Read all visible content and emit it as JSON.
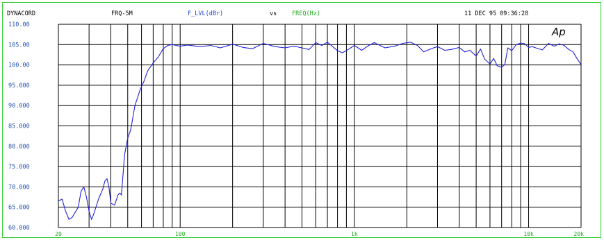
{
  "header": {
    "brand": "DYNACORD",
    "device": "FRQ-5M",
    "y_quantity": "F_LVL(dBr)",
    "vs": "vs",
    "x_quantity": "FREQ(Hz)",
    "timestamp": "11 DEC 95 09:36:28"
  },
  "logo": "Ap",
  "colors": {
    "frame": "#32cd32",
    "trace": "#1f1fd8",
    "ytick_text": "#2050b0",
    "xtick_text": "#1faa1f",
    "y_quantity": "#1f3fd0",
    "x_quantity": "#1faa1f",
    "grid": "#000000"
  },
  "chart_data": {
    "type": "line",
    "title": "",
    "xlabel": "",
    "ylabel": "",
    "x_scale": "log",
    "xlim": [
      20,
      20000
    ],
    "ylim": [
      60,
      110
    ],
    "grid": true,
    "x_tick_labels": [
      {
        "value": 20,
        "label": "20"
      },
      {
        "value": 100,
        "label": "100"
      },
      {
        "value": 1000,
        "label": "1k"
      },
      {
        "value": 10000,
        "label": "10k"
      },
      {
        "value": 20000,
        "label": "20k"
      }
    ],
    "y_tick_labels": [
      {
        "value": 110,
        "label": "110.00"
      },
      {
        "value": 105,
        "label": "105.00"
      },
      {
        "value": 100,
        "label": "100.00"
      },
      {
        "value": 95,
        "label": "95.000"
      },
      {
        "value": 90,
        "label": "90.000"
      },
      {
        "value": 85,
        "label": "85.000"
      },
      {
        "value": 80,
        "label": "80.000"
      },
      {
        "value": 75,
        "label": "75.000"
      },
      {
        "value": 70,
        "label": "70.000"
      },
      {
        "value": 65,
        "label": "65.000"
      },
      {
        "value": 60,
        "label": "60.000"
      }
    ],
    "series": [
      {
        "x": [
          20,
          21,
          22,
          23,
          24,
          26,
          27,
          28,
          29,
          30,
          31,
          32,
          34,
          36,
          37,
          38,
          39,
          40,
          42,
          44,
          45,
          46,
          47,
          48,
          50,
          52,
          53,
          55,
          57,
          59,
          62,
          65,
          70,
          75,
          80,
          85,
          90,
          95,
          100,
          110,
          130,
          150,
          170,
          200,
          230,
          260,
          300,
          350,
          400,
          450,
          500,
          550,
          600,
          650,
          700,
          750,
          800,
          850,
          900,
          1000,
          1100,
          1200,
          1300,
          1500,
          1700,
          1900,
          2100,
          2300,
          2500,
          2800,
          3000,
          3300,
          3600,
          4000,
          4300,
          4600,
          5000,
          5300,
          5600,
          6000,
          6300,
          6600,
          7000,
          7300,
          7600,
          8000,
          8500,
          9000,
          9500,
          10000,
          10500,
          11000,
          12000,
          13000,
          14000,
          15000,
          16000,
          17000,
          18000,
          19000,
          20000
        ],
        "y": [
          66.5,
          67,
          64,
          62,
          62.5,
          65,
          69,
          70,
          67.5,
          64,
          62,
          63.5,
          67,
          69.5,
          71.5,
          72,
          70,
          66,
          65.5,
          68,
          68.5,
          68,
          73,
          78,
          82,
          84,
          86,
          90,
          92,
          94,
          96,
          98.5,
          100.5,
          102,
          104,
          104.8,
          105,
          104.8,
          104.6,
          104.9,
          104.5,
          104.8,
          104.2,
          105.1,
          104.3,
          104,
          105.3,
          104.5,
          104.2,
          104.6,
          104.2,
          103.8,
          105.5,
          104.8,
          105.6,
          104.5,
          103.5,
          103,
          103.5,
          104.8,
          103.6,
          104.7,
          105.5,
          104.2,
          104.6,
          105.3,
          105.6,
          104.8,
          103.2,
          104.1,
          104.5,
          103.6,
          103.8,
          104.3,
          103.2,
          103.6,
          102.2,
          103.9,
          101.4,
          100.2,
          101.6,
          99.8,
          99.4,
          100.1,
          104.2,
          103.5,
          105,
          105.4,
          105.2,
          104.3,
          104.5,
          104.2,
          103.7,
          105.3,
          104.6,
          105.2,
          104.8,
          103.8,
          103.2,
          101.5,
          100.1
        ]
      }
    ]
  }
}
